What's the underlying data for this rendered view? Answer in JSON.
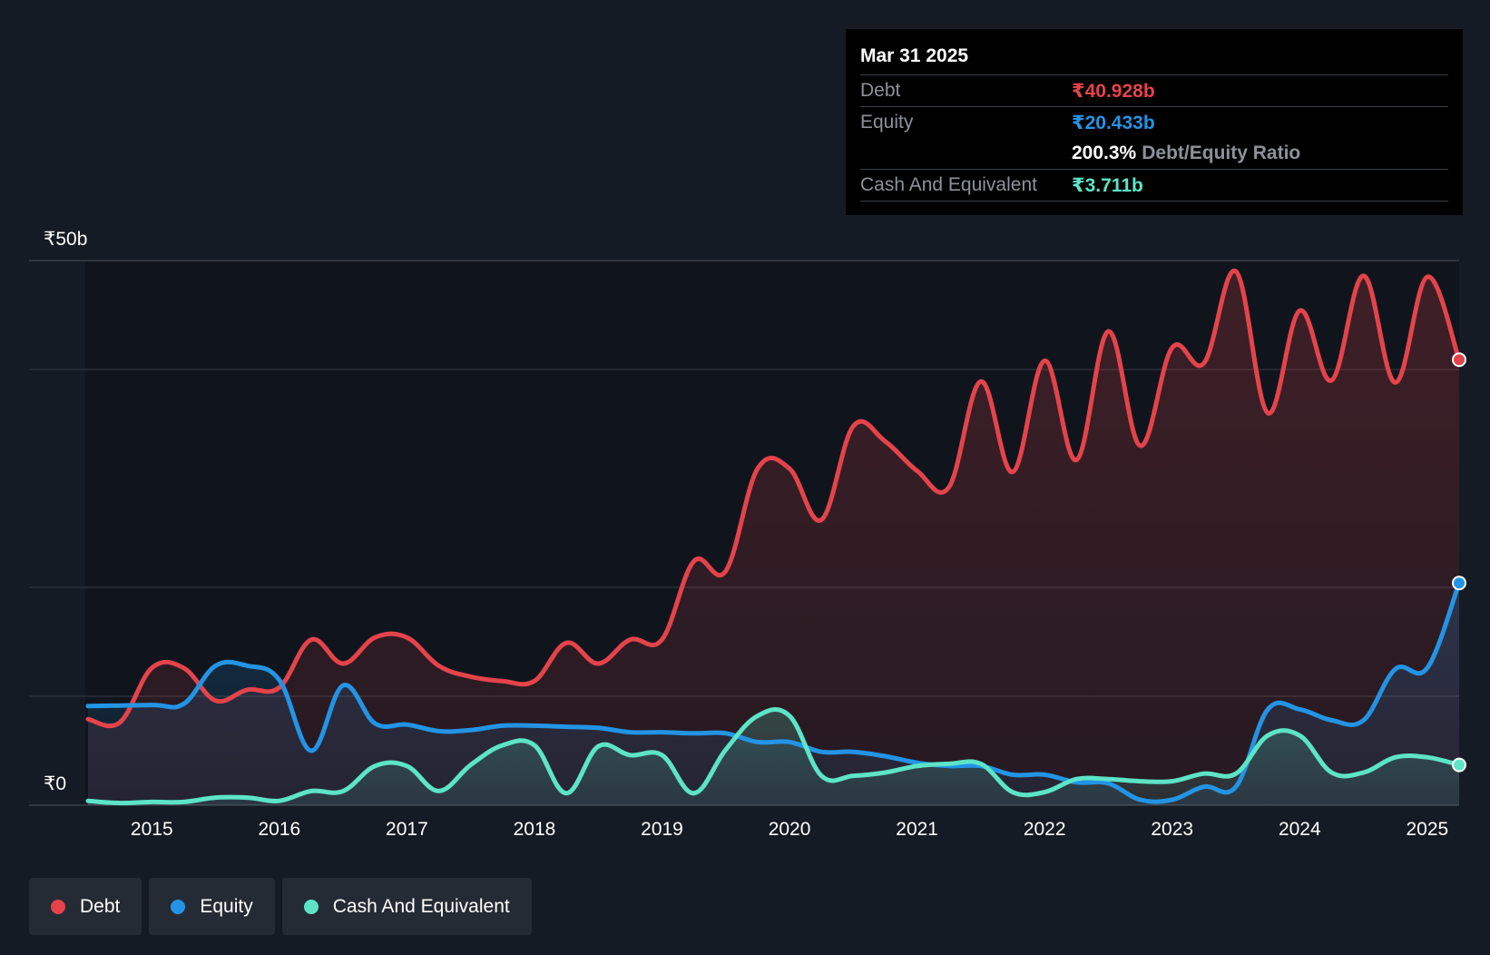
{
  "colors": {
    "background": "#151b24",
    "debt": "#e5434a",
    "equity": "#2394e5",
    "cash": "#5de4c7",
    "grid": "#3a3f47",
    "text": "#ffffff",
    "muted": "#8e9199"
  },
  "tooltip": {
    "date": "Mar 31 2025",
    "debt_label": "Debt",
    "debt_value": "₹40.928b",
    "equity_label": "Equity",
    "equity_value": "₹20.433b",
    "ratio_value": "200.3%",
    "ratio_label": "Debt/Equity Ratio",
    "cash_label": "Cash And Equivalent",
    "cash_value": "₹3.711b"
  },
  "legend": [
    {
      "label": "Debt",
      "color": "#e5434a"
    },
    {
      "label": "Equity",
      "color": "#2394e5"
    },
    {
      "label": "Cash And Equivalent",
      "color": "#5de4c7"
    }
  ],
  "chart_data": {
    "type": "area",
    "title": "",
    "xlabel": "",
    "ylabel": "",
    "y_tick_labels": {
      "top": "₹50b",
      "bottom": "₹0"
    },
    "ylim": [
      0,
      50
    ],
    "xlim": [
      2014.5,
      2025.25
    ],
    "x_ticks": [
      2015,
      2016,
      2017,
      2018,
      2019,
      2020,
      2021,
      2022,
      2023,
      2024,
      2025
    ],
    "x_tick_labels": [
      "2015",
      "2016",
      "2017",
      "2018",
      "2019",
      "2020",
      "2021",
      "2022",
      "2023",
      "2024",
      "2025"
    ],
    "grid_values": [
      10,
      20,
      40
    ],
    "series": [
      {
        "name": "Debt",
        "color": "#e5434a",
        "points": [
          [
            2014.5,
            7.9
          ],
          [
            2014.75,
            7.6
          ],
          [
            2015.0,
            12.6
          ],
          [
            2015.25,
            12.6
          ],
          [
            2015.5,
            9.6
          ],
          [
            2015.75,
            10.6
          ],
          [
            2016.0,
            10.8
          ],
          [
            2016.25,
            15.2
          ],
          [
            2016.5,
            13.0
          ],
          [
            2016.75,
            15.4
          ],
          [
            2017.0,
            15.4
          ],
          [
            2017.25,
            12.8
          ],
          [
            2017.5,
            11.8
          ],
          [
            2017.75,
            11.4
          ],
          [
            2018.0,
            11.4
          ],
          [
            2018.25,
            14.9
          ],
          [
            2018.5,
            13.0
          ],
          [
            2018.75,
            15.2
          ],
          [
            2019.0,
            15.2
          ],
          [
            2019.25,
            22.4
          ],
          [
            2019.5,
            21.5
          ],
          [
            2019.75,
            30.9
          ],
          [
            2020.0,
            30.9
          ],
          [
            2020.25,
            26.2
          ],
          [
            2020.5,
            34.8
          ],
          [
            2020.75,
            33.4
          ],
          [
            2021.0,
            30.7
          ],
          [
            2021.25,
            29.2
          ],
          [
            2021.5,
            38.9
          ],
          [
            2021.75,
            30.6
          ],
          [
            2022.0,
            40.8
          ],
          [
            2022.25,
            31.7
          ],
          [
            2022.5,
            43.5
          ],
          [
            2022.75,
            33.0
          ],
          [
            2023.0,
            42.0
          ],
          [
            2023.25,
            40.6
          ],
          [
            2023.5,
            49.0
          ],
          [
            2023.75,
            36.0
          ],
          [
            2024.0,
            45.4
          ],
          [
            2024.25,
            39.0
          ],
          [
            2024.5,
            48.6
          ],
          [
            2024.75,
            38.8
          ],
          [
            2025.0,
            48.5
          ],
          [
            2025.25,
            40.9
          ]
        ]
      },
      {
        "name": "Equity",
        "color": "#2394e5",
        "points": [
          [
            2014.5,
            9.1
          ],
          [
            2015.0,
            9.2
          ],
          [
            2015.25,
            9.3
          ],
          [
            2015.5,
            12.8
          ],
          [
            2015.75,
            12.8
          ],
          [
            2016.0,
            11.5
          ],
          [
            2016.25,
            5.0
          ],
          [
            2016.5,
            11.0
          ],
          [
            2016.75,
            7.5
          ],
          [
            2017.0,
            7.4
          ],
          [
            2017.25,
            6.8
          ],
          [
            2017.5,
            6.9
          ],
          [
            2017.75,
            7.3
          ],
          [
            2018.0,
            7.3
          ],
          [
            2018.25,
            7.2
          ],
          [
            2018.5,
            7.1
          ],
          [
            2018.75,
            6.7
          ],
          [
            2019.0,
            6.7
          ],
          [
            2019.25,
            6.6
          ],
          [
            2019.5,
            6.6
          ],
          [
            2019.75,
            5.8
          ],
          [
            2020.0,
            5.8
          ],
          [
            2020.25,
            4.9
          ],
          [
            2020.5,
            4.9
          ],
          [
            2020.75,
            4.5
          ],
          [
            2021.0,
            3.9
          ],
          [
            2021.25,
            3.6
          ],
          [
            2021.5,
            3.6
          ],
          [
            2021.75,
            2.8
          ],
          [
            2022.0,
            2.8
          ],
          [
            2022.25,
            2.1
          ],
          [
            2022.5,
            2.0
          ],
          [
            2022.75,
            0.5
          ],
          [
            2023.0,
            0.5
          ],
          [
            2023.25,
            1.7
          ],
          [
            2023.5,
            1.7
          ],
          [
            2023.75,
            8.8
          ],
          [
            2024.0,
            8.8
          ],
          [
            2024.25,
            7.8
          ],
          [
            2024.5,
            7.8
          ],
          [
            2024.75,
            12.5
          ],
          [
            2025.0,
            12.6
          ],
          [
            2025.25,
            20.4
          ]
        ]
      },
      {
        "name": "Cash And Equivalent",
        "color": "#5de4c7",
        "points": [
          [
            2014.5,
            0.4
          ],
          [
            2014.75,
            0.2
          ],
          [
            2015.0,
            0.3
          ],
          [
            2015.25,
            0.3
          ],
          [
            2015.5,
            0.7
          ],
          [
            2015.75,
            0.7
          ],
          [
            2016.0,
            0.4
          ],
          [
            2016.25,
            1.3
          ],
          [
            2016.5,
            1.3
          ],
          [
            2016.75,
            3.6
          ],
          [
            2017.0,
            3.6
          ],
          [
            2017.25,
            1.3
          ],
          [
            2017.5,
            3.7
          ],
          [
            2017.75,
            5.5
          ],
          [
            2018.0,
            5.5
          ],
          [
            2018.25,
            1.1
          ],
          [
            2018.5,
            5.4
          ],
          [
            2018.75,
            4.6
          ],
          [
            2019.0,
            4.6
          ],
          [
            2019.25,
            1.1
          ],
          [
            2019.5,
            5.1
          ],
          [
            2019.75,
            8.2
          ],
          [
            2020.0,
            8.2
          ],
          [
            2020.25,
            2.7
          ],
          [
            2020.5,
            2.7
          ],
          [
            2020.75,
            3.0
          ],
          [
            2021.0,
            3.6
          ],
          [
            2021.25,
            3.8
          ],
          [
            2021.5,
            3.8
          ],
          [
            2021.75,
            1.2
          ],
          [
            2022.0,
            1.2
          ],
          [
            2022.25,
            2.4
          ],
          [
            2022.5,
            2.4
          ],
          [
            2022.75,
            2.2
          ],
          [
            2023.0,
            2.2
          ],
          [
            2023.25,
            2.9
          ],
          [
            2023.5,
            2.9
          ],
          [
            2023.75,
            6.4
          ],
          [
            2024.0,
            6.4
          ],
          [
            2024.25,
            3.0
          ],
          [
            2024.5,
            3.0
          ],
          [
            2024.75,
            4.4
          ],
          [
            2025.0,
            4.4
          ],
          [
            2025.25,
            3.7
          ]
        ]
      }
    ]
  }
}
